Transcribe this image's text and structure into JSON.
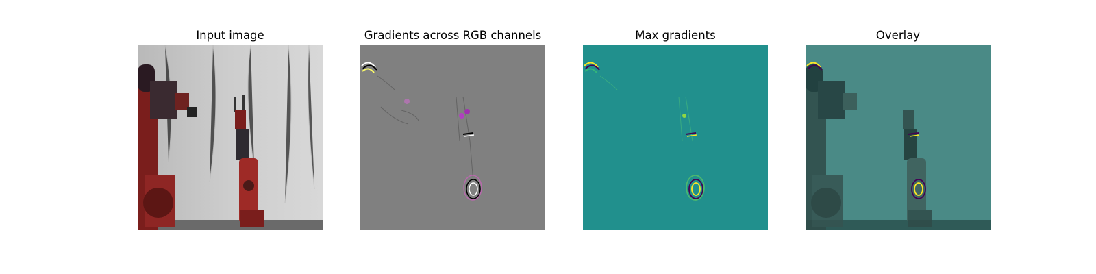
{
  "figure": {
    "panels": [
      {
        "title": "Input image"
      },
      {
        "title": "Gradients across RGB channels"
      },
      {
        "title": "Max gradients"
      },
      {
        "title": "Overlay"
      }
    ]
  },
  "colors": {
    "background": "#ffffff",
    "input_backdrop": "#c8c8c8",
    "robot_red": "#7a1e1c",
    "robot_dark": "#2a1a22",
    "gradient_gray": "#808080",
    "viridis_teal": "#21908d",
    "viridis_yellow": "#fde725",
    "overlay_teal": "#3f7f7b"
  }
}
